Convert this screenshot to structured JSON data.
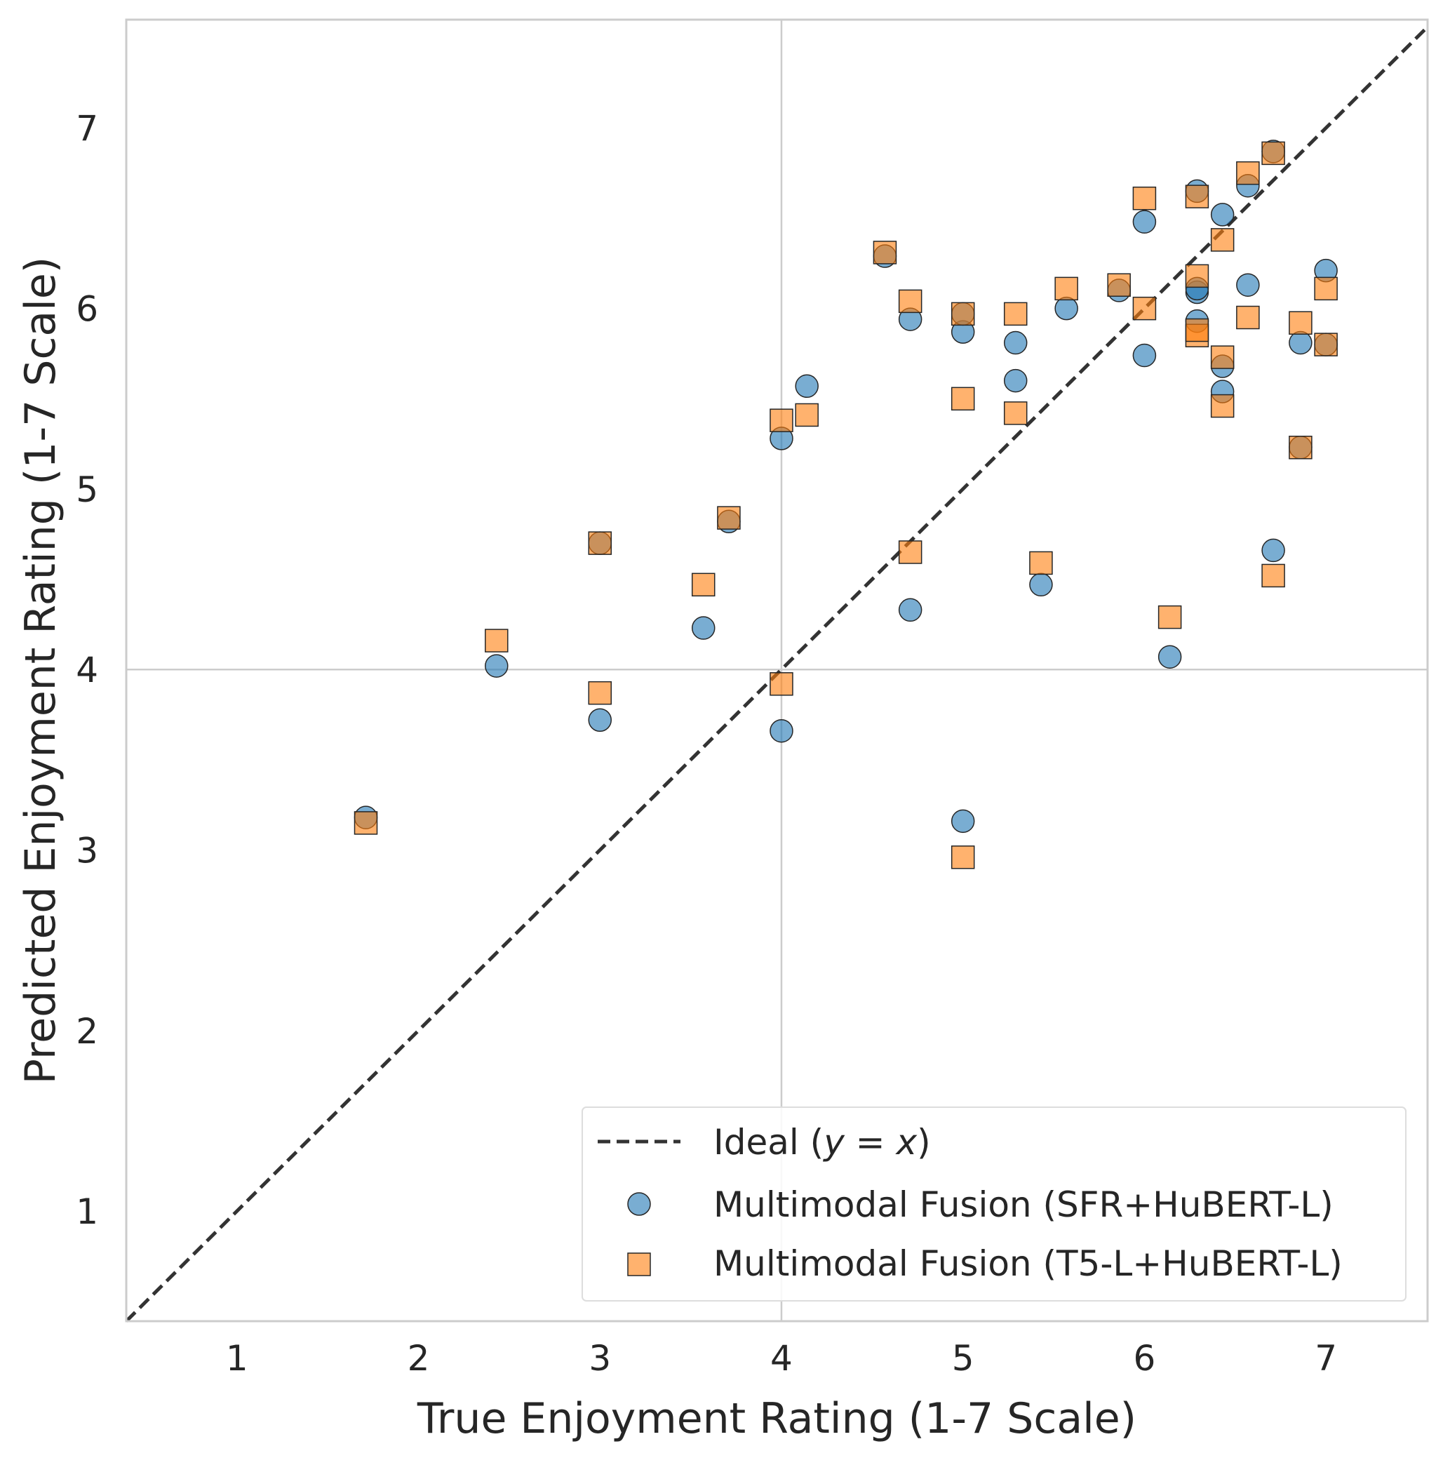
{
  "chart_data": {
    "type": "scatter",
    "title": "",
    "xlabel": "True Enjoyment Rating (1-7 Scale)",
    "ylabel": "Predicted Enjoyment Rating (1-7 Scale)",
    "xlim": [
      0.39,
      7.56
    ],
    "ylim": [
      0.39,
      7.6
    ],
    "xticks": [
      "1",
      "2",
      "3",
      "4",
      "5",
      "6",
      "7"
    ],
    "yticks": [
      "1",
      "2",
      "3",
      "4",
      "5",
      "6",
      "7"
    ],
    "grid_lines": {
      "x": [
        4
      ],
      "y": [
        4
      ]
    },
    "legend_position": "lower-right",
    "ideal_line": {
      "name": "Ideal (y = x)",
      "name_prefix": "Ideal (",
      "name_y": "y",
      "name_eq": " = ",
      "name_x": "x",
      "name_suffix": ")",
      "color": "#333333",
      "style": "dashed"
    },
    "series": [
      {
        "name": "Multimodal Fusion (SFR+HuBERT-L)",
        "marker": "circle",
        "color": "#1f77b4",
        "points": [
          [
            1.71,
            3.18
          ],
          [
            2.43,
            4.02
          ],
          [
            3.0,
            3.72
          ],
          [
            3.0,
            4.7
          ],
          [
            3.57,
            4.23
          ],
          [
            3.71,
            4.82
          ],
          [
            4.0,
            3.66
          ],
          [
            4.0,
            5.28
          ],
          [
            4.14,
            5.57
          ],
          [
            4.57,
            6.29
          ],
          [
            4.71,
            4.33
          ],
          [
            4.71,
            5.94
          ],
          [
            5.0,
            3.16
          ],
          [
            5.0,
            5.87
          ],
          [
            5.0,
            5.97
          ],
          [
            5.29,
            5.6
          ],
          [
            5.29,
            5.81
          ],
          [
            5.43,
            4.47
          ],
          [
            5.57,
            6.0
          ],
          [
            5.86,
            6.1
          ],
          [
            6.0,
            5.74
          ],
          [
            6.0,
            6.48
          ],
          [
            6.14,
            4.07
          ],
          [
            6.29,
            5.93
          ],
          [
            6.29,
            6.09
          ],
          [
            6.29,
            6.11
          ],
          [
            6.29,
            6.65
          ],
          [
            6.43,
            5.54
          ],
          [
            6.43,
            5.68
          ],
          [
            6.43,
            6.52
          ],
          [
            6.57,
            6.13
          ],
          [
            6.57,
            6.68
          ],
          [
            6.71,
            4.66
          ],
          [
            6.71,
            6.87
          ],
          [
            6.86,
            5.23
          ],
          [
            6.86,
            5.81
          ],
          [
            7.0,
            5.8
          ],
          [
            7.0,
            6.21
          ]
        ]
      },
      {
        "name": "Multimodal Fusion (T5-L+HuBERT-L)",
        "marker": "square",
        "color": "#ff7f0e",
        "points": [
          [
            1.71,
            3.15
          ],
          [
            2.43,
            4.16
          ],
          [
            3.0,
            3.87
          ],
          [
            3.0,
            4.7
          ],
          [
            3.57,
            4.47
          ],
          [
            3.71,
            4.84
          ],
          [
            4.0,
            3.92
          ],
          [
            4.0,
            5.38
          ],
          [
            4.14,
            5.41
          ],
          [
            4.57,
            6.31
          ],
          [
            4.71,
            4.65
          ],
          [
            4.71,
            6.04
          ],
          [
            5.0,
            2.96
          ],
          [
            5.0,
            5.5
          ],
          [
            5.0,
            5.97
          ],
          [
            5.29,
            5.42
          ],
          [
            5.29,
            5.97
          ],
          [
            5.43,
            4.59
          ],
          [
            5.57,
            6.11
          ],
          [
            5.86,
            6.13
          ],
          [
            6.0,
            6.0
          ],
          [
            6.0,
            6.61
          ],
          [
            6.14,
            4.29
          ],
          [
            6.29,
            5.85
          ],
          [
            6.29,
            5.88
          ],
          [
            6.29,
            6.18
          ],
          [
            6.29,
            6.62
          ],
          [
            6.43,
            5.46
          ],
          [
            6.43,
            5.73
          ],
          [
            6.43,
            6.38
          ],
          [
            6.57,
            5.95
          ],
          [
            6.57,
            6.75
          ],
          [
            6.71,
            4.52
          ],
          [
            6.71,
            6.86
          ],
          [
            6.86,
            5.23
          ],
          [
            6.86,
            5.92
          ],
          [
            7.0,
            5.8
          ],
          [
            7.0,
            6.11
          ]
        ]
      }
    ]
  }
}
